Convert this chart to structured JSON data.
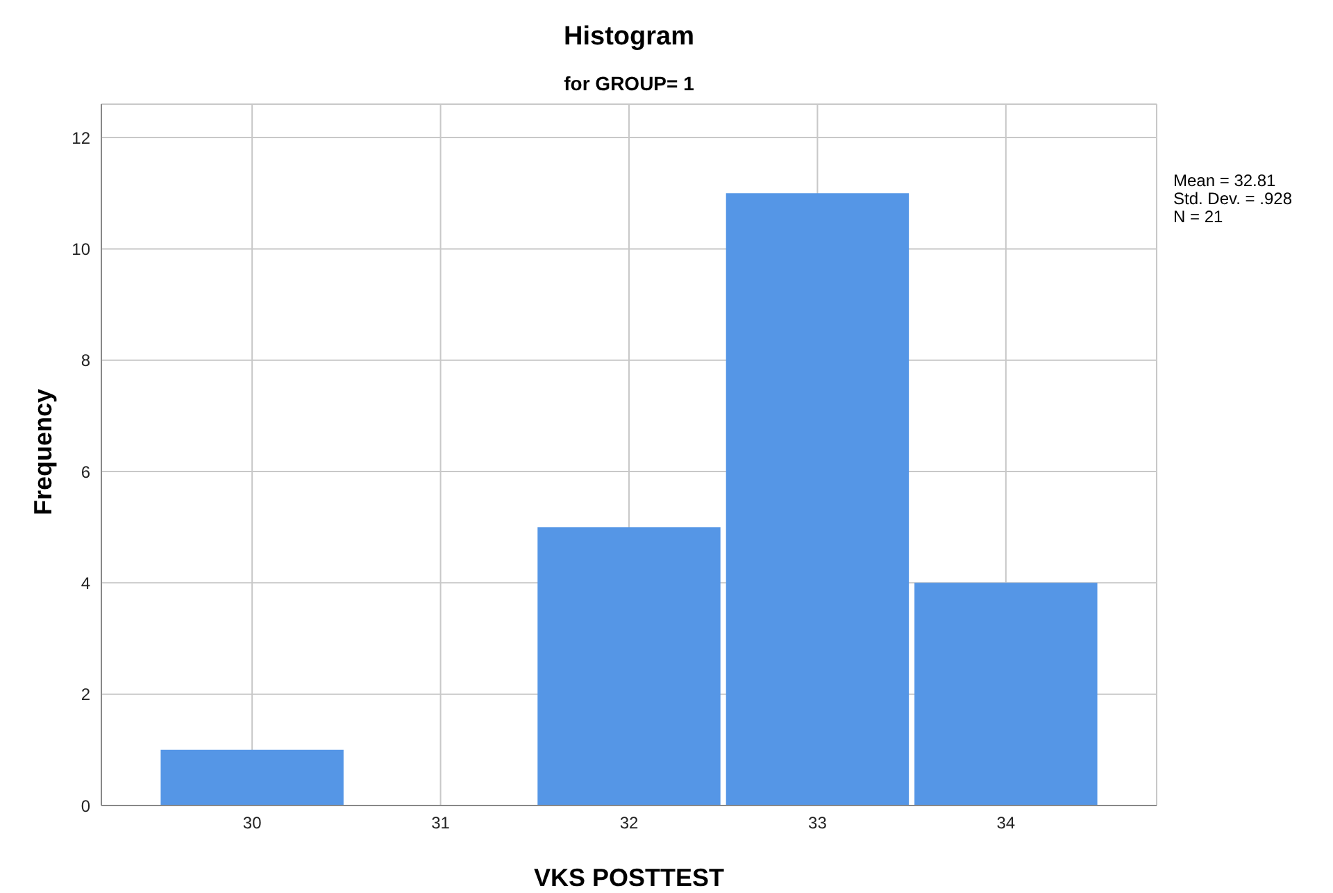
{
  "chart_data": {
    "type": "histogram",
    "title": "Histogram",
    "subtitle": "for GROUP= 1",
    "xlabel": "VKS POSTTEST",
    "ylabel": "Frequency",
    "bins": [
      29.5,
      30.5,
      31.5,
      32.5,
      33.5,
      34.5
    ],
    "values": [
      1,
      0,
      5,
      11,
      4
    ],
    "color": "#5596e6",
    "xlim": [
      29.2,
      34.8
    ],
    "xticks": [
      30,
      31,
      32,
      33,
      34
    ],
    "ylim": [
      0,
      12.6
    ],
    "yticks": [
      0,
      2,
      4,
      6,
      8,
      10,
      12
    ],
    "grid": true,
    "annotations": [
      "Mean = 32.81",
      "Std. Dev. = .928",
      "N = 21"
    ]
  }
}
